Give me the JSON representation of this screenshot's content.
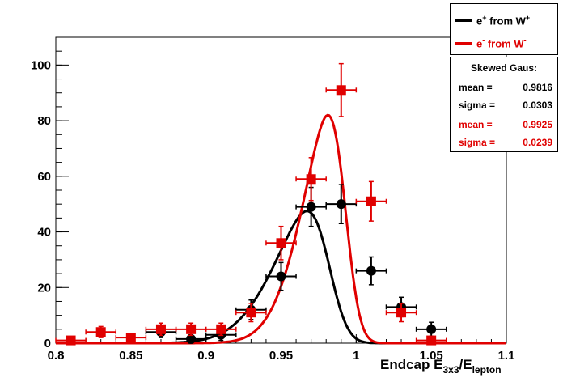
{
  "chart_data": {
    "type": "scatter",
    "xlabel": "Endcap E",
    "xlabel_sub1": "3x3",
    "xlabel_mid": "/E",
    "xlabel_sub2": "lepton",
    "xlim": [
      0.8,
      1.1
    ],
    "ylim": [
      0,
      110
    ],
    "x_ticks": [
      "0.8",
      "0.85",
      "0.9",
      "0.95",
      "1",
      "1.05",
      "1.1"
    ],
    "y_ticks": [
      "0",
      "20",
      "40",
      "60",
      "80",
      "100"
    ],
    "series": [
      {
        "name": "e+ from W+",
        "color": "#000000",
        "marker": "circle",
        "x": [
          0.87,
          0.89,
          0.91,
          0.93,
          0.95,
          0.97,
          0.99,
          1.01,
          1.03,
          1.05
        ],
        "y": [
          4,
          1.5,
          3,
          12,
          24,
          49,
          50,
          26,
          13,
          5
        ],
        "yerr": [
          2,
          1.5,
          2,
          3.5,
          5,
          7,
          7,
          5,
          3.5,
          2.5
        ],
        "xerr": 0.01
      },
      {
        "name": "e- from W-",
        "color": "#e00000",
        "marker": "square",
        "x": [
          0.81,
          0.83,
          0.85,
          0.87,
          0.89,
          0.91,
          0.93,
          0.95,
          0.97,
          0.99,
          1.01,
          1.03,
          1.05
        ],
        "y": [
          1,
          4,
          2,
          5,
          5,
          5,
          11,
          36,
          59,
          91,
          51,
          11,
          1
        ],
        "yerr": [
          1,
          2,
          1.5,
          2.2,
          2.2,
          2.2,
          3.3,
          6,
          7.7,
          9.5,
          7.1,
          3.3,
          1
        ],
        "xerr": 0.01
      }
    ],
    "fits": [
      {
        "color": "#000000",
        "amp": 47.5,
        "mean": 0.9816,
        "sigma": 0.0303,
        "skew": 3.0
      },
      {
        "color": "#e00000",
        "amp": 82,
        "mean": 0.9925,
        "sigma": 0.0239,
        "skew": 3.0
      }
    ]
  },
  "legend": {
    "entries": [
      {
        "text": "e",
        "sup1": "+",
        "mid": " from W",
        "sup2": "+",
        "color": "#000000"
      },
      {
        "text": "e",
        "sup1": "-",
        "mid": " from W",
        "sup2": "-",
        "color": "#e00000"
      }
    ]
  },
  "stats": {
    "title": "Skewed Gaus:",
    "rows": [
      {
        "label": "mean =",
        "value": "0.9816",
        "color": "black"
      },
      {
        "label": "sigma =",
        "value": "0.0303",
        "color": "black"
      },
      {
        "label": "mean =",
        "value": "0.9925",
        "color": "red"
      },
      {
        "label": "sigma =",
        "value": "0.0239",
        "color": "red"
      }
    ]
  }
}
